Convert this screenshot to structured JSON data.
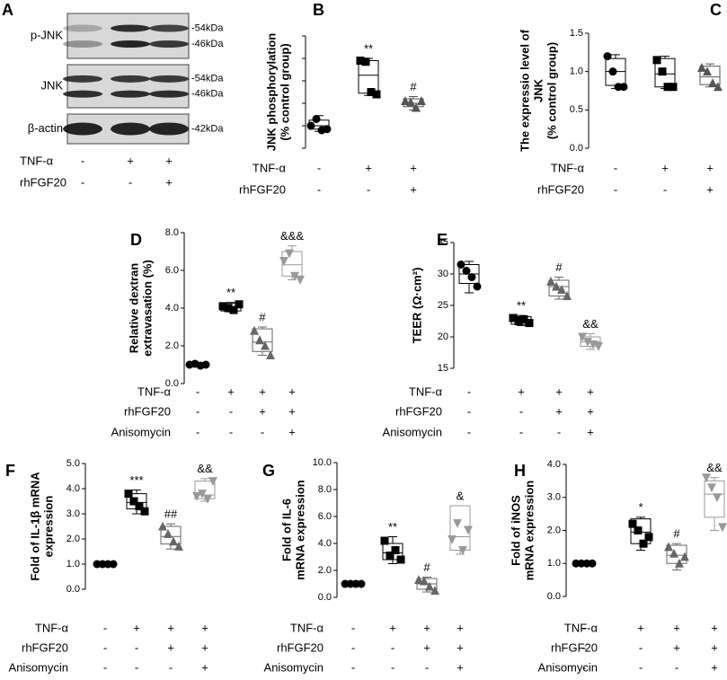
{
  "blot": {
    "panel": "A",
    "rows": [
      {
        "label": "p-JNK",
        "sizes": [
          "-54kDa",
          "-46kDa"
        ]
      },
      {
        "label": "JNK",
        "sizes": [
          "-54kDa",
          "-46kDa"
        ]
      },
      {
        "label": "β-actin",
        "sizes": [
          "-42kDa"
        ]
      }
    ],
    "treatments": [
      {
        "name": "TNF-α",
        "signs": [
          "-",
          "+",
          "+"
        ]
      },
      {
        "name": "rhFGF20",
        "signs": [
          "-",
          "-",
          "+"
        ]
      }
    ]
  },
  "chart_data": [
    {
      "type": "box",
      "panel": "B",
      "ylabel": [
        "JNK phosphorylation",
        "(% control group)"
      ],
      "ylim": [
        0,
        5
      ],
      "yticks": [
        0,
        1,
        2,
        3,
        4,
        5
      ],
      "tick_labels": false,
      "treatments": [
        {
          "name": "TNF-α",
          "signs": [
            "-",
            "+",
            "+"
          ]
        },
        {
          "name": "rhFGF20",
          "signs": [
            "-",
            "-",
            "+"
          ]
        }
      ],
      "groups": [
        {
          "marker": "circle",
          "color": "#000000",
          "points": [
            1.0,
            1.3,
            0.8,
            0.85
          ],
          "box": {
            "min": 0.75,
            "q1": 0.85,
            "median": 1.0,
            "q3": 1.25,
            "max": 1.45
          }
        },
        {
          "marker": "square",
          "color": "#000000",
          "points": [
            3.9,
            3.85,
            2.5,
            2.4
          ],
          "box": {
            "min": 2.35,
            "q1": 2.45,
            "median": 3.25,
            "q3": 3.9,
            "max": 4.0
          },
          "annotation": "**"
        },
        {
          "marker": "triangle-up",
          "color": "#555555",
          "points": [
            2.1,
            2.05,
            1.8,
            2.1
          ],
          "box": {
            "min": 1.7,
            "q1": 1.85,
            "median": 2.0,
            "q3": 2.2,
            "max": 2.3
          },
          "annotation": "#"
        }
      ]
    },
    {
      "type": "box",
      "panel": "C",
      "ylabel": [
        "The expressio level of",
        "JNK",
        "(% control group)"
      ],
      "ylim": [
        0,
        1.5
      ],
      "yticks": [
        {
          "value": 0,
          "label": "0.0"
        },
        0.5,
        {
          "value": 1,
          "label": "1.0"
        },
        1.5
      ],
      "tick_labels": true,
      "treatments": [
        {
          "name": "TNF-α",
          "signs": [
            "-",
            "+",
            "+"
          ]
        },
        {
          "name": "rhFGF20",
          "signs": [
            "-",
            "-",
            "+"
          ]
        }
      ],
      "groups": [
        {
          "marker": "circle",
          "color": "#000000",
          "points": [
            1.2,
            1.0,
            0.8,
            0.8
          ],
          "box": {
            "min": 0.78,
            "q1": 0.82,
            "median": 1.0,
            "q3": 1.17,
            "max": 1.22
          }
        },
        {
          "marker": "square",
          "color": "#000000",
          "points": [
            1.15,
            1.0,
            0.8,
            0.8
          ],
          "box": {
            "min": 0.78,
            "q1": 0.8,
            "median": 0.97,
            "q3": 1.17,
            "max": 1.2
          }
        },
        {
          "marker": "triangle-up",
          "color": "#555555",
          "points": [
            1.05,
            1.0,
            0.85,
            0.8
          ],
          "box": {
            "min": 0.8,
            "q1": 0.83,
            "median": 0.93,
            "q3": 1.07,
            "max": 1.1
          }
        }
      ]
    },
    {
      "type": "box",
      "panel": "D",
      "ylabel": [
        "Relative dextran",
        "extravasation (%)"
      ],
      "ylim": [
        0,
        8
      ],
      "yticks": [
        {
          "value": 0,
          "label": "0.0"
        },
        {
          "value": 2,
          "label": "2.0"
        },
        {
          "value": 4,
          "label": "4.0"
        },
        {
          "value": 6,
          "label": "6.0"
        },
        {
          "value": 8,
          "label": "8.0"
        }
      ],
      "tick_labels": true,
      "treatments": [
        {
          "name": "TNF-α",
          "signs": [
            "-",
            "+",
            "+",
            "+"
          ]
        },
        {
          "name": "rhFGF20",
          "signs": [
            "-",
            "-",
            "+",
            "+"
          ]
        },
        {
          "name": "Anisomycin",
          "signs": [
            "-",
            "-",
            "-",
            "+"
          ]
        }
      ],
      "groups": [
        {
          "marker": "circle",
          "color": "#000000",
          "points": [
            1.0,
            1.05,
            0.95,
            1.0
          ],
          "box": {
            "min": 0.9,
            "q1": 0.95,
            "median": 1.0,
            "q3": 1.05,
            "max": 1.1
          }
        },
        {
          "marker": "square",
          "color": "#000000",
          "points": [
            4.1,
            4.0,
            3.9,
            4.2
          ],
          "box": {
            "min": 3.8,
            "q1": 3.85,
            "median": 4.05,
            "q3": 4.25,
            "max": 4.3
          },
          "annotation": "**"
        },
        {
          "marker": "triangle-up",
          "color": "#666666",
          "points": [
            2.8,
            2.3,
            2.0,
            1.5
          ],
          "box": {
            "min": 1.5,
            "q1": 1.7,
            "median": 2.2,
            "q3": 2.9,
            "max": 3.0
          },
          "annotation": "#"
        },
        {
          "marker": "triangle-down",
          "color": "#999999",
          "points": [
            6.5,
            6.9,
            5.7,
            5.5
          ],
          "box": {
            "min": 5.5,
            "q1": 5.7,
            "median": 6.3,
            "q3": 7.0,
            "max": 7.3
          },
          "annotation": "&&&"
        }
      ]
    },
    {
      "type": "box",
      "panel": "E",
      "ylabel": [
        "TEER (Ω·cm²)"
      ],
      "ylim": [
        15,
        35
      ],
      "yticks": [
        15,
        20,
        25,
        30,
        35
      ],
      "tick_labels": true,
      "treatments": [
        {
          "name": "TNF-α",
          "signs": [
            "-",
            "+",
            "+",
            "+"
          ]
        },
        {
          "name": "rhFGF20",
          "signs": [
            "-",
            "-",
            "+",
            "+"
          ]
        },
        {
          "name": "Anisomycin",
          "signs": [
            "-",
            "-",
            "-",
            "+"
          ]
        }
      ],
      "groups": [
        {
          "marker": "circle",
          "color": "#000000",
          "points": [
            31.5,
            30.5,
            29.5,
            28
          ],
          "box": {
            "min": 27,
            "q1": 28.5,
            "median": 30,
            "q3": 31.5,
            "max": 32
          }
        },
        {
          "marker": "square",
          "color": "#000000",
          "points": [
            23,
            22.5,
            22.8,
            22.2
          ],
          "box": {
            "min": 21.8,
            "q1": 22,
            "median": 22.5,
            "q3": 23.2,
            "max": 23.4
          },
          "annotation": "**"
        },
        {
          "marker": "triangle-up",
          "color": "#666666",
          "points": [
            28.8,
            28,
            27.5,
            26.5
          ],
          "box": {
            "min": 26,
            "q1": 26.5,
            "median": 28,
            "q3": 29,
            "max": 29.5
          },
          "annotation": "#"
        },
        {
          "marker": "triangle-down",
          "color": "#999999",
          "points": [
            20,
            19.2,
            18.8,
            18.5
          ],
          "box": {
            "min": 18,
            "q1": 18.5,
            "median": 19.2,
            "q3": 20,
            "max": 20.5
          },
          "annotation": "&&"
        }
      ]
    },
    {
      "type": "box",
      "panel": "F",
      "ylabel": [
        "Fold of IL-1β mRNA",
        "expression"
      ],
      "ylim": [
        0,
        5
      ],
      "yticks": [
        {
          "value": 0,
          "label": "0.0"
        },
        {
          "value": 1,
          "label": "1.0"
        },
        {
          "value": 2,
          "label": "2.0"
        },
        {
          "value": 3,
          "label": "3.0"
        },
        {
          "value": 4,
          "label": "4.0"
        },
        {
          "value": 5,
          "label": "5.0"
        }
      ],
      "tick_labels": true,
      "treatments": [
        {
          "name": "TNF-α",
          "signs": [
            "-",
            "+",
            "+",
            "+"
          ]
        },
        {
          "name": "rhFGF20",
          "signs": [
            "-",
            "-",
            "+",
            "+"
          ]
        },
        {
          "name": "Anisomycin",
          "signs": [
            "-",
            "-",
            "-",
            "+"
          ]
        }
      ],
      "groups": [
        {
          "marker": "circle",
          "color": "#000000",
          "points": [
            1.0,
            1.0,
            1.0,
            1.0
          ],
          "box": {
            "min": 1.0,
            "q1": 1.0,
            "median": 1.0,
            "q3": 1.0,
            "max": 1.0
          }
        },
        {
          "marker": "square",
          "color": "#000000",
          "points": [
            3.8,
            3.5,
            3.3,
            3.1
          ],
          "box": {
            "min": 3.0,
            "q1": 3.2,
            "median": 3.45,
            "q3": 3.8,
            "max": 3.95
          },
          "annotation": "***"
        },
        {
          "marker": "triangle-up",
          "color": "#666666",
          "points": [
            2.5,
            2.2,
            1.9,
            1.7
          ],
          "box": {
            "min": 1.6,
            "q1": 1.8,
            "median": 2.1,
            "q3": 2.5,
            "max": 2.6
          },
          "annotation": "##"
        },
        {
          "marker": "triangle-down",
          "color": "#999999",
          "points": [
            3.7,
            3.8,
            3.6,
            4.3
          ],
          "box": {
            "min": 3.5,
            "q1": 3.6,
            "median": 3.75,
            "q3": 4.3,
            "max": 4.4
          },
          "annotation": "&&"
        }
      ]
    },
    {
      "type": "box",
      "panel": "G",
      "ylabel": [
        "Fold of IL-6",
        "mRNA expression"
      ],
      "ylim": [
        0,
        10
      ],
      "yticks": [
        {
          "value": 0,
          "label": "0.0"
        },
        {
          "value": 2,
          "label": "2.0"
        },
        {
          "value": 4,
          "label": "4.0"
        },
        {
          "value": 6,
          "label": "6.0"
        },
        {
          "value": 8,
          "label": "8.0"
        },
        {
          "value": 10,
          "label": "10.0"
        }
      ],
      "tick_labels": true,
      "treatments": [
        {
          "name": "TNF-α",
          "signs": [
            "-",
            "+",
            "+",
            "+"
          ]
        },
        {
          "name": "rhFGF20",
          "signs": [
            "-",
            "-",
            "+",
            "+"
          ]
        },
        {
          "name": "Anisomycin",
          "signs": [
            "-",
            "-",
            "-",
            "+"
          ]
        }
      ],
      "groups": [
        {
          "marker": "circle",
          "color": "#000000",
          "points": [
            1.0,
            1.0,
            1.0,
            1.0
          ],
          "box": {
            "min": 1.0,
            "q1": 1.0,
            "median": 1.0,
            "q3": 1.0,
            "max": 1.0
          }
        },
        {
          "marker": "square",
          "color": "#000000",
          "points": [
            4.2,
            3.1,
            3.5,
            2.8
          ],
          "box": {
            "min": 2.5,
            "q1": 2.8,
            "median": 3.3,
            "q3": 4.0,
            "max": 4.5
          },
          "annotation": "**"
        },
        {
          "marker": "triangle-up",
          "color": "#666666",
          "points": [
            1.3,
            1.2,
            0.8,
            0.5
          ],
          "box": {
            "min": 0.4,
            "q1": 0.6,
            "median": 1.0,
            "q3": 1.4,
            "max": 1.5
          },
          "annotation": "#"
        },
        {
          "marker": "triangle-down",
          "color": "#999999",
          "points": [
            4.3,
            5.5,
            3.5,
            5.0
          ],
          "box": {
            "min": 3.2,
            "q1": 3.5,
            "median": 4.5,
            "q3": 6.8,
            "max": 6.8
          },
          "annotation": "&"
        }
      ]
    },
    {
      "type": "box",
      "panel": "H",
      "ylabel": [
        "Fold of iNOS",
        "mRNA expression"
      ],
      "ylim": [
        0,
        4
      ],
      "yticks": [
        {
          "value": 0,
          "label": "0.0"
        },
        {
          "value": 1,
          "label": "1.0"
        },
        {
          "value": 2,
          "label": "2.0"
        },
        {
          "value": 3,
          "label": "3.0"
        },
        {
          "value": 4,
          "label": "4.0"
        }
      ],
      "tick_labels": true,
      "treatments": [
        {
          "name": "TNF-α",
          "signs": [
            "-",
            "+",
            "+",
            "+"
          ]
        },
        {
          "name": "rhFGF20",
          "signs": [
            "-",
            "-",
            "+",
            "+"
          ]
        },
        {
          "name": "Anisomycin",
          "signs": [
            "-",
            "-",
            "-",
            "+"
          ]
        }
      ],
      "groups": [
        {
          "marker": "circle",
          "color": "#000000",
          "points": [
            1.0,
            1.0,
            1.0,
            1.0
          ],
          "box": {
            "min": 1.0,
            "q1": 1.0,
            "median": 1.0,
            "q3": 1.0,
            "max": 1.0
          }
        },
        {
          "marker": "square",
          "color": "#000000",
          "points": [
            2.2,
            2.0,
            1.6,
            1.8
          ],
          "box": {
            "min": 1.4,
            "q1": 1.6,
            "median": 1.95,
            "q3": 2.35,
            "max": 2.4
          },
          "annotation": "*"
        },
        {
          "marker": "triangle-up",
          "color": "#666666",
          "points": [
            1.5,
            1.3,
            1.0,
            1.2
          ],
          "box": {
            "min": 0.8,
            "q1": 1.0,
            "median": 1.25,
            "q3": 1.55,
            "max": 1.6
          },
          "annotation": "#"
        },
        {
          "marker": "triangle-down",
          "color": "#999999",
          "points": [
            3.6,
            3.3,
            3.0,
            2.1
          ],
          "box": {
            "min": 2.0,
            "q1": 2.4,
            "median": 3.1,
            "q3": 3.5,
            "max": 3.6
          },
          "annotation": "&&"
        }
      ]
    }
  ]
}
